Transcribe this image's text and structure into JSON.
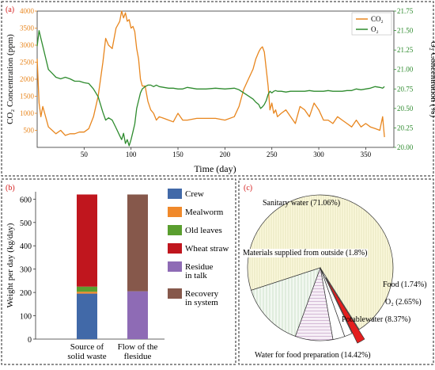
{
  "colors": {
    "co2": "#E8861E",
    "o2": "#2E8B2E",
    "crew": "#4169A8",
    "mealworm": "#F0892B",
    "old_leaves": "#5A9E2F",
    "wheat_straw": "#C0161E",
    "residue": "#8E6BB5",
    "recovery": "#86584B",
    "label_red": "#D62020"
  },
  "chart_data": [
    {
      "panel": "(a)",
      "type": "line",
      "xlabel": "Time (day)",
      "ylabel_left": "CO₂ Concentration (ppm)",
      "ylabel_right": "O₂ Concentration (%)",
      "xlim": [
        0,
        380
      ],
      "ylim_left": [
        0,
        4000
      ],
      "ylim_right": [
        20.0,
        21.75
      ],
      "x_ticks": [
        50,
        100,
        150,
        200,
        250,
        300,
        350
      ],
      "y_left_ticks": [
        500,
        1000,
        1500,
        2000,
        2500,
        3000,
        3500,
        4000
      ],
      "y_right_ticks": [
        20.0,
        20.25,
        20.5,
        20.75,
        21.0,
        21.25,
        21.5,
        21.75
      ],
      "y_right_tick_labels": [
        "20.00",
        "20.25",
        "20.50",
        "20.75",
        "21.00",
        "21.25",
        "21.50",
        "21.75"
      ],
      "legend": "top-right",
      "series": [
        {
          "name": "CO₂",
          "axis": "left",
          "x": [
            0,
            2,
            4,
            6,
            8,
            12,
            16,
            20,
            25,
            30,
            35,
            40,
            45,
            50,
            55,
            60,
            65,
            70,
            73,
            76,
            80,
            84,
            88,
            90,
            92,
            94,
            96,
            98,
            100,
            102,
            104,
            106,
            108,
            110,
            112,
            115,
            118,
            121,
            124,
            127,
            130,
            135,
            140,
            145,
            150,
            155,
            160,
            170,
            180,
            190,
            200,
            210,
            215,
            220,
            225,
            230,
            233,
            236,
            238,
            240,
            242,
            244,
            246,
            248,
            250,
            252,
            254,
            256,
            260,
            265,
            270,
            275,
            280,
            285,
            290,
            295,
            300,
            305,
            310,
            315,
            320,
            325,
            330,
            335,
            340,
            345,
            350,
            355,
            360,
            365,
            368,
            370
          ],
          "values": [
            2600,
            1300,
            900,
            1200,
            1000,
            600,
            500,
            400,
            500,
            350,
            400,
            400,
            450,
            450,
            550,
            900,
            1500,
            2500,
            3200,
            3000,
            2900,
            3500,
            3700,
            4000,
            3800,
            3950,
            3700,
            3750,
            3500,
            3550,
            3400,
            2900,
            2600,
            2000,
            1800,
            1800,
            1350,
            1100,
            1000,
            800,
            900,
            850,
            800,
            750,
            1000,
            800,
            800,
            850,
            850,
            850,
            800,
            900,
            1200,
            1700,
            2000,
            2300,
            2600,
            2800,
            2900,
            2950,
            2800,
            2300,
            1800,
            1100,
            1300,
            1000,
            1100,
            900,
            1000,
            1100,
            900,
            700,
            1200,
            1100,
            900,
            1300,
            1100,
            800,
            800,
            700,
            900,
            800,
            700,
            600,
            800,
            600,
            700,
            600,
            550,
            500,
            900,
            300
          ]
        },
        {
          "name": "O₂",
          "axis": "right",
          "x": [
            0,
            2,
            4,
            6,
            8,
            12,
            16,
            20,
            25,
            30,
            35,
            40,
            45,
            50,
            55,
            60,
            65,
            70,
            73,
            76,
            80,
            84,
            88,
            90,
            92,
            94,
            96,
            98,
            100,
            102,
            104,
            106,
            108,
            110,
            112,
            115,
            118,
            121,
            124,
            127,
            130,
            135,
            140,
            145,
            150,
            155,
            160,
            170,
            180,
            190,
            200,
            210,
            215,
            220,
            225,
            230,
            233,
            236,
            238,
            240,
            242,
            244,
            246,
            248,
            250,
            252,
            254,
            256,
            260,
            265,
            270,
            275,
            280,
            285,
            290,
            295,
            300,
            305,
            310,
            315,
            320,
            325,
            330,
            335,
            340,
            345,
            350,
            355,
            360,
            365,
            368,
            370
          ],
          "values": [
            21.3,
            21.5,
            21.4,
            21.3,
            21.2,
            21.0,
            20.95,
            20.9,
            20.88,
            20.9,
            20.88,
            20.85,
            20.85,
            20.83,
            20.82,
            20.75,
            20.65,
            20.45,
            20.35,
            20.38,
            20.35,
            20.25,
            20.15,
            20.1,
            20.18,
            20.05,
            20.1,
            20.02,
            20.1,
            20.2,
            20.3,
            20.5,
            20.6,
            20.7,
            20.75,
            20.78,
            20.8,
            20.8,
            20.78,
            20.8,
            20.78,
            20.77,
            20.76,
            20.76,
            20.75,
            20.75,
            20.77,
            20.75,
            20.75,
            20.76,
            20.75,
            20.76,
            20.74,
            20.7,
            20.66,
            20.62,
            20.58,
            20.55,
            20.5,
            20.52,
            20.55,
            20.6,
            20.68,
            20.72,
            20.7,
            20.72,
            20.73,
            20.72,
            20.72,
            20.71,
            20.72,
            20.72,
            20.72,
            20.72,
            20.73,
            20.72,
            20.72,
            20.72,
            20.73,
            20.72,
            20.72,
            20.72,
            20.73,
            20.73,
            20.75,
            20.74,
            20.75,
            20.76,
            20.78,
            20.77,
            20.76,
            20.78
          ]
        }
      ]
    },
    {
      "panel": "(b)",
      "type": "bar",
      "stacked": true,
      "ylabel": "Weight per day (kg/day)",
      "xlabel": "",
      "ylim": [
        0,
        625
      ],
      "y_ticks": [
        0,
        100,
        200,
        300,
        400,
        500,
        600
      ],
      "categories": [
        "Source of solid waste",
        "Flow of the flesidue"
      ],
      "category_lines": [
        [
          "Source of",
          "solid waste"
        ],
        [
          "Flow of the",
          "flesidue"
        ]
      ],
      "legend": "right",
      "series": [
        {
          "name": "Crew",
          "values": [
            195,
            0
          ]
        },
        {
          "name": "Mealworm",
          "values": [
            8,
            0
          ]
        },
        {
          "name": "Old leaves",
          "values": [
            22,
            0
          ]
        },
        {
          "name": "Wheat straw",
          "values": [
            395,
            0
          ]
        },
        {
          "name": "Residue in talk",
          "legend_lines": [
            "Residue",
            "in talk"
          ],
          "values": [
            0,
            205
          ]
        },
        {
          "name": "Recovery in system",
          "legend_lines": [
            "Recovery",
            "in system"
          ],
          "values": [
            0,
            415
          ]
        }
      ]
    },
    {
      "panel": "(c)",
      "type": "pie",
      "slices": [
        {
          "label": "Sanitary water (71.06%)",
          "value": 71.06
        },
        {
          "label": "Materials supplied from outside (1.8%)",
          "value": 1.8
        },
        {
          "label": "Food (1.74%)",
          "value": 1.74
        },
        {
          "label": "O₂ (2.65%)",
          "value": 2.65
        },
        {
          "label": "Potablewater (8.37%)",
          "value": 8.37
        },
        {
          "label": "Water for food preparation (14.42%)",
          "value": 14.42
        }
      ]
    }
  ]
}
